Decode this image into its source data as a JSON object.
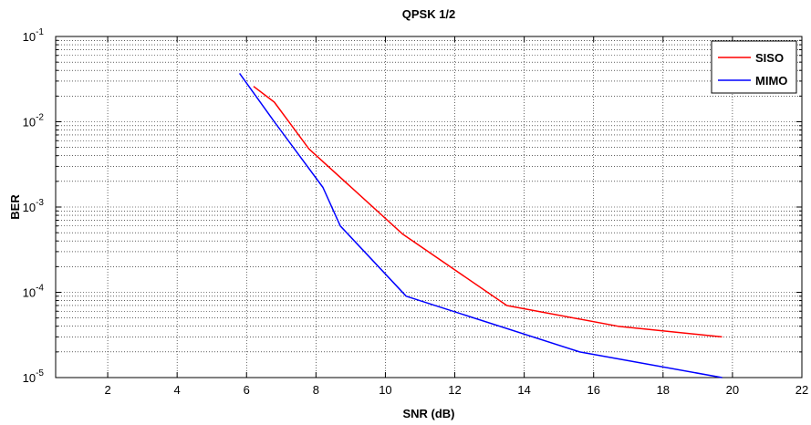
{
  "chart_data": {
    "type": "line",
    "title": "QPSK 1/2",
    "xlabel": "SNR (dB)",
    "ylabel": "BER",
    "xlim": [
      0.5,
      22
    ],
    "ylim": [
      1e-05,
      0.1
    ],
    "yscale": "log",
    "grid": true,
    "legend_position": "top-right",
    "xticks": [
      "2",
      "4",
      "6",
      "8",
      "10",
      "12",
      "14",
      "16",
      "18",
      "20",
      "22"
    ],
    "yticks": [
      {
        "base": "10",
        "exp": "-5"
      },
      {
        "base": "10",
        "exp": "-4"
      },
      {
        "base": "10",
        "exp": "-3"
      },
      {
        "base": "10",
        "exp": "-2"
      },
      {
        "base": "10",
        "exp": "-1"
      }
    ],
    "series": [
      {
        "name": "SISO",
        "color": "#ff0000",
        "x": [
          6.2,
          6.8,
          7.8,
          10.5,
          13.5,
          16.7,
          19.7
        ],
        "y": [
          0.026,
          0.017,
          0.0048,
          0.00048,
          7e-05,
          4e-05,
          3e-05
        ]
      },
      {
        "name": "MIMO",
        "color": "#0000ff",
        "x": [
          5.8,
          6.8,
          8.2,
          8.7,
          10.6,
          15.6,
          19.7
        ],
        "y": [
          0.037,
          0.01,
          0.0017,
          0.0006,
          9e-05,
          2e-05,
          1e-05
        ]
      }
    ]
  }
}
